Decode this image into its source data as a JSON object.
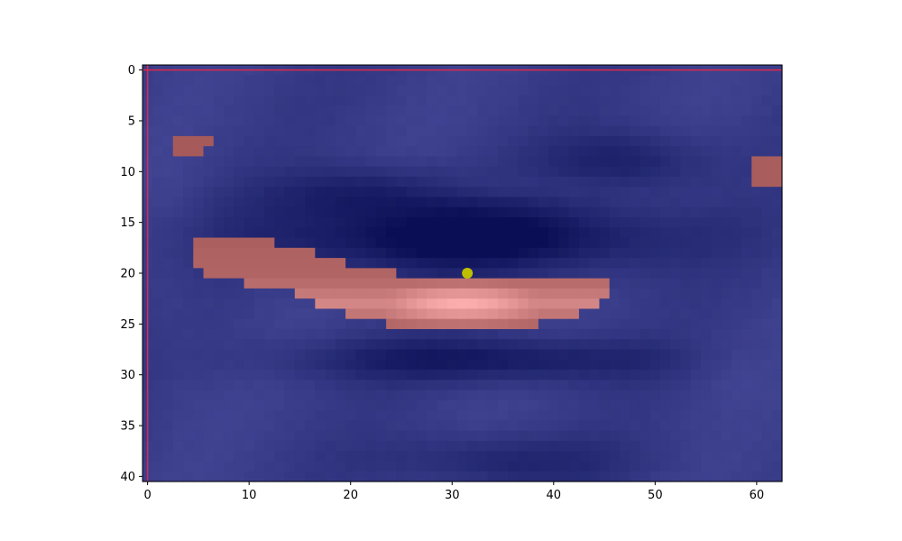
{
  "chart_data": {
    "type": "heatmap",
    "title": "",
    "xlabel": "",
    "ylabel": "",
    "grid": false,
    "legend": "none",
    "x_range": [
      -0.5,
      62.5
    ],
    "y_range": [
      40.5,
      -0.5
    ],
    "x_ticks": [
      0,
      10,
      20,
      30,
      40,
      50,
      60
    ],
    "y_ticks": [
      0,
      5,
      10,
      15,
      20,
      25,
      30,
      35,
      40
    ],
    "x_tick_labels": [
      "0",
      "10",
      "20",
      "30",
      "40",
      "50",
      "60"
    ],
    "y_tick_labels": [
      "0",
      "5",
      "10",
      "15",
      "20",
      "25",
      "30",
      "35",
      "40"
    ],
    "grid_size": {
      "cols": 63,
      "rows": 41
    },
    "colors": {
      "background_low": "#0a0f55",
      "background_high": "#4b4e9d",
      "mask_low": "#a65a5a",
      "mask_high": "#ffb0b0",
      "border_line": "#dc2a4a",
      "marker": "#bfbf00"
    },
    "background_features": [
      {
        "type": "trough",
        "cx": 31,
        "cy": 16.5,
        "rx": 20,
        "ry": 3.5,
        "strength": 1.0
      },
      {
        "type": "trough",
        "cx": 33,
        "cy": 28.5,
        "rx": 18,
        "ry": 2.2,
        "strength": 0.7
      },
      {
        "type": "trough",
        "cx": 22,
        "cy": 12,
        "rx": 10,
        "ry": 2.5,
        "strength": 0.55
      },
      {
        "type": "trough",
        "cx": 47,
        "cy": 9,
        "rx": 8,
        "ry": 3,
        "strength": 0.55
      },
      {
        "type": "trough",
        "cx": 35,
        "cy": 38.5,
        "rx": 12,
        "ry": 2.5,
        "strength": 0.45
      },
      {
        "type": "ridge",
        "cx": 35,
        "cy": 11.5,
        "rx": 10,
        "ry": 1.2,
        "strength": 0.5
      },
      {
        "type": "ridge",
        "cx": 57,
        "cy": 29,
        "rx": 5,
        "ry": 3,
        "strength": 0.45
      },
      {
        "type": "ridge",
        "cx": 3,
        "cy": 20,
        "rx": 3,
        "ry": 15,
        "strength": 0.25
      }
    ],
    "mask_regions": [
      {
        "rows": [
          7,
          7
        ],
        "cols": [
          3,
          6
        ],
        "intensity": 0.0
      },
      {
        "rows": [
          8,
          8
        ],
        "cols": [
          3,
          5
        ],
        "intensity": 0.0
      },
      {
        "rows": [
          9,
          11
        ],
        "cols": [
          60,
          62
        ],
        "intensity": 0.05
      },
      {
        "rows": [
          17,
          17
        ],
        "cols": [
          5,
          12
        ],
        "intensity": 0.1
      },
      {
        "rows": [
          18,
          18
        ],
        "cols": [
          5,
          16
        ],
        "intensity": 0.15
      },
      {
        "rows": [
          19,
          19
        ],
        "cols": [
          5,
          19
        ],
        "intensity": 0.18
      },
      {
        "rows": [
          20,
          20
        ],
        "cols": [
          6,
          24
        ],
        "intensity": 0.2
      },
      {
        "rows": [
          21,
          21
        ],
        "cols": [
          10,
          45
        ],
        "intensity": 0.35
      },
      {
        "rows": [
          22,
          22
        ],
        "cols": [
          15,
          45
        ],
        "intensity": 0.6
      },
      {
        "rows": [
          23,
          23
        ],
        "cols": [
          17,
          44
        ],
        "intensity": 0.85
      },
      {
        "rows": [
          24,
          24
        ],
        "cols": [
          20,
          42
        ],
        "intensity": 0.55
      },
      {
        "rows": [
          25,
          25
        ],
        "cols": [
          24,
          38
        ],
        "intensity": 0.2
      }
    ],
    "mask_peak": {
      "cx": 31,
      "cy": 23,
      "rx": 9,
      "ry": 1.8
    },
    "border": {
      "row": 0,
      "col": 0
    },
    "marker": {
      "x": 31.5,
      "y": 20
    }
  }
}
